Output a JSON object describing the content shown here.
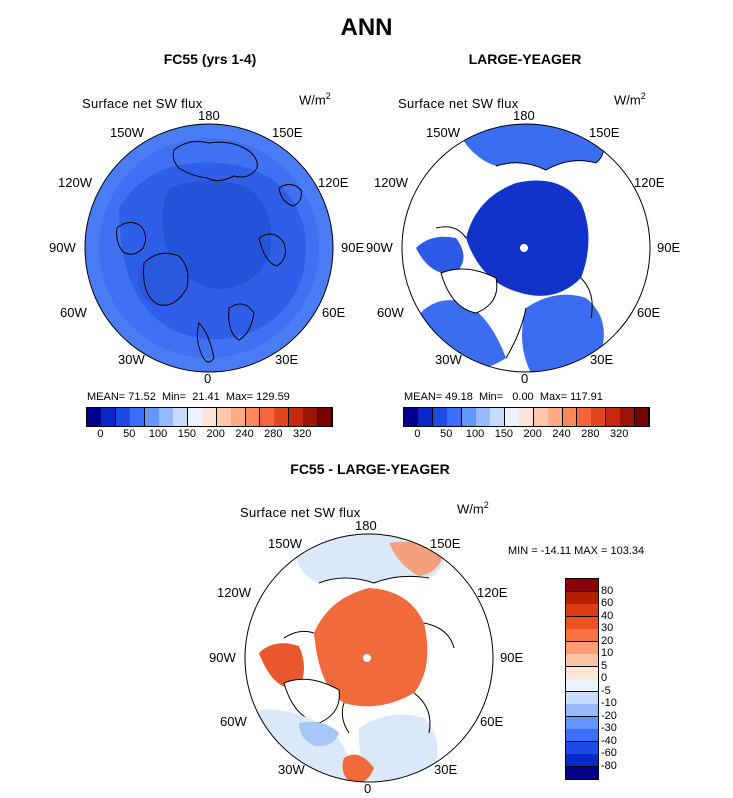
{
  "title": "ANN",
  "panels": [
    {
      "id": "fc55",
      "title": "FC55 (yrs 1-4)",
      "variable": "Surface net SW flux",
      "units": "W/m",
      "units_exp": "2",
      "lon_labels": {
        "n": "180",
        "ne": "150E",
        "ene": "120E",
        "e": "90E",
        "ese": "60E",
        "se": "30E",
        "s": "0",
        "sw": "30W",
        "wsw": "60W",
        "w": "90W",
        "wnw": "120W",
        "nw": "150W"
      },
      "stats": {
        "mean_label": "MEAN=",
        "mean": "71.52",
        "min_label": "Min=",
        "min": "21.41",
        "max_label": "Max=",
        "max": "129.59"
      }
    },
    {
      "id": "large-yeager",
      "title": "LARGE-YEAGER",
      "variable": "Surface net SW flux",
      "units": "W/m",
      "units_exp": "2",
      "lon_labels": {
        "n": "180",
        "ne": "150E",
        "ene": "120E",
        "e": "90E",
        "ese": "60E",
        "se": "30E",
        "s": "0",
        "sw": "30W",
        "wsw": "60W",
        "w": "90W",
        "wnw": "120W",
        "nw": "150W"
      },
      "stats": {
        "mean_label": "MEAN=",
        "mean": "49.18",
        "min_label": "Min=",
        "min": "0.00",
        "max_label": "Max=",
        "max": "117.91"
      }
    },
    {
      "id": "difference",
      "title": "FC55 - LARGE-YEAGER",
      "variable": "Surface net SW flux",
      "units": "W/m",
      "units_exp": "2",
      "lon_labels": {
        "n": "180",
        "ne": "150E",
        "ene": "120E",
        "e": "90E",
        "ese": "60E",
        "se": "30E",
        "s": "0",
        "sw": "30W",
        "wsw": "60W",
        "w": "90W",
        "wnw": "120W",
        "nw": "150W"
      },
      "stats_text": "MIN = -14.11 MAX = 103.34"
    }
  ],
  "colorbar_abs": {
    "ticks": [
      "0",
      "50",
      "100",
      "150",
      "200",
      "240",
      "280",
      "320"
    ],
    "colors": [
      "#00008b",
      "#0a28c8",
      "#1e4be6",
      "#3c6eff",
      "#6496ff",
      "#96b9ff",
      "#c8dcff",
      "#eaf2ff",
      "#ffe6d7",
      "#ffc8aa",
      "#ffaa82",
      "#ff875a",
      "#f5643c",
      "#e1461e",
      "#c8280f",
      "#9b1405",
      "#780000"
    ]
  },
  "colorbar_diff": {
    "ticks": [
      "80",
      "60",
      "40",
      "30",
      "20",
      "10",
      "5",
      "0",
      "-5",
      "-10",
      "-20",
      "-30",
      "-40",
      "-60",
      "-80"
    ],
    "colors": [
      "#8b0000",
      "#b41e05",
      "#dc3c14",
      "#f0501e",
      "#fa7346",
      "#fc9b78",
      "#fdc3a8",
      "#fee6d7",
      "#eaf2ff",
      "#c8dcff",
      "#96b9ff",
      "#6496ff",
      "#3c6eff",
      "#1e4be6",
      "#0a28c8",
      "#00008b"
    ]
  },
  "colors": {
    "ocean_fc55": "#2f5fe8",
    "ocean_fc55_outer": "#4a7cf5",
    "ocean_ly": "#3b6df0",
    "ice_ly": "#1233c9",
    "diff_arctic": "#f06a3c",
    "diff_outer": "#dbe8fa"
  }
}
